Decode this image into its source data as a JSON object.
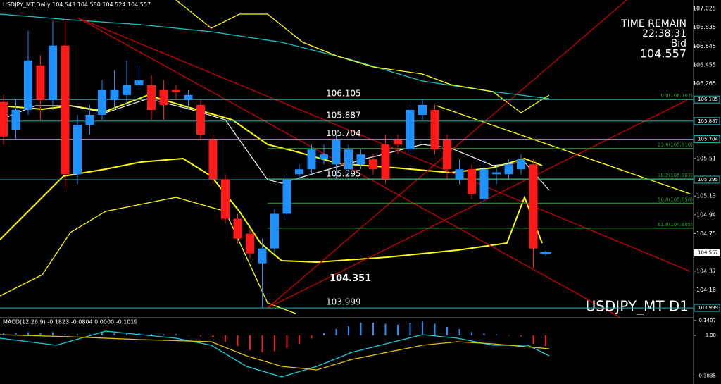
{
  "chart_data": [
    {
      "type": "candlestick",
      "title": "USDJPY_MT,Daily",
      "header_values": "104.543 104.580 104.524 104.557",
      "open": [
        106.08,
        105.8,
        106.0,
        106.45,
        106.1,
        106.65,
        105.35,
        105.85,
        105.95,
        106.1,
        106.15,
        106.25,
        106.25,
        106.2,
        106.2,
        106.1,
        106.05,
        105.7,
        105.3,
        104.9,
        104.75,
        104.45,
        104.6,
        104.95,
        105.35,
        105.4,
        105.5,
        105.45,
        105.4,
        105.45,
        105.5,
        105.65,
        105.7,
        105.6,
        105.95,
        106.0,
        105.7,
        105.3,
        105.4,
        105.1,
        105.35,
        105.35,
        105.4,
        105.45,
        104.543
      ],
      "high": [
        106.15,
        106.1,
        106.8,
        106.55,
        106.9,
        106.9,
        105.95,
        106.05,
        106.3,
        106.4,
        106.5,
        106.45,
        106.35,
        106.3,
        106.25,
        106.2,
        106.1,
        105.75,
        105.35,
        104.95,
        104.8,
        104.7,
        105.0,
        105.35,
        105.45,
        105.65,
        105.65,
        105.75,
        105.65,
        105.6,
        105.55,
        105.75,
        105.75,
        106.05,
        106.1,
        106.05,
        105.75,
        105.5,
        105.45,
        105.5,
        105.45,
        105.5,
        105.55,
        105.5,
        104.58
      ],
      "low": [
        105.65,
        105.7,
        105.95,
        105.9,
        106.0,
        105.2,
        105.25,
        105.75,
        105.9,
        106.0,
        106.05,
        106.2,
        105.9,
        105.9,
        106.1,
        106.0,
        105.7,
        105.25,
        104.85,
        104.65,
        104.5,
        103.999,
        104.55,
        104.9,
        105.3,
        105.35,
        105.45,
        105.3,
        105.35,
        105.4,
        105.35,
        105.25,
        105.55,
        105.55,
        105.9,
        105.55,
        105.3,
        105.25,
        105.1,
        105.05,
        105.25,
        105.3,
        105.35,
        104.4,
        104.524
      ],
      "close": [
        105.73,
        106.0,
        106.5,
        106.1,
        106.65,
        105.35,
        105.85,
        105.95,
        106.2,
        106.2,
        106.25,
        106.3,
        106.0,
        106.05,
        106.18,
        106.15,
        105.75,
        105.3,
        104.9,
        104.7,
        104.55,
        104.6,
        104.95,
        105.3,
        105.4,
        105.6,
        105.55,
        105.7,
        105.6,
        105.55,
        105.4,
        105.3,
        105.65,
        106.0,
        106.05,
        105.6,
        105.4,
        105.4,
        105.15,
        105.4,
        105.37,
        105.45,
        105.5,
        104.6,
        104.557
      ],
      "up_color": "#1e90ff",
      "down_color": "#ff1a1a",
      "ylim": [
        103.907,
        107.11
      ],
      "yticks": [
        107.025,
        106.835,
        106.645,
        106.455,
        106.265,
        105.51,
        105.13,
        104.94,
        104.75,
        104.37,
        104.18
      ],
      "levels": [
        106.105,
        105.887,
        105.704,
        105.295,
        103.999
      ],
      "level_color": "#1fb5b5",
      "low_annotation": 104.351,
      "fib": [
        {
          "value": 106.107,
          "label": "0.0(106.107)"
        },
        {
          "value": 105.61,
          "label": "23.6(105.610)"
        },
        {
          "value": 105.303,
          "label": "38.2(105.303)"
        },
        {
          "value": 105.058,
          "label": "50.0(105.058)"
        },
        {
          "value": 104.805,
          "label": "61.8(104.805)"
        }
      ],
      "fib_color": "#2fa52f",
      "bid": 104.557,
      "timer_title": "TIME REMAIN",
      "timer": "22:38:31",
      "bid_label": "Bid",
      "symbol_label": "USDJPY_MT D1"
    },
    {
      "type": "macd",
      "title": "MACD(12,26,9) -0.1823 -0.0804 0.0000 -0.1019",
      "values": [
        0.02,
        0.02,
        0.03,
        0.02,
        0.03,
        0.01,
        0.01,
        0.01,
        0.02,
        0.02,
        0.02,
        0.02,
        0.01,
        0.01,
        0.01,
        0.0,
        -0.01,
        -0.02,
        -0.06,
        -0.1,
        -0.14,
        -0.16,
        -0.15,
        -0.12,
        -0.08,
        -0.03,
        0.02,
        0.06,
        0.09,
        0.12,
        0.12,
        0.11,
        0.1,
        0.12,
        0.13,
        0.11,
        0.08,
        0.06,
        0.03,
        0.02,
        0.01,
        0.0,
        -0.01,
        -0.08,
        -0.1019
      ],
      "up_color": "#1e90ff",
      "down_color": "#ff1a1a",
      "ylim": [
        -0.46,
        0.173
      ],
      "yticks": [
        0.1407,
        {
          "value": 0,
          "label": "0.00"
        },
        -0.3835
      ]
    }
  ]
}
